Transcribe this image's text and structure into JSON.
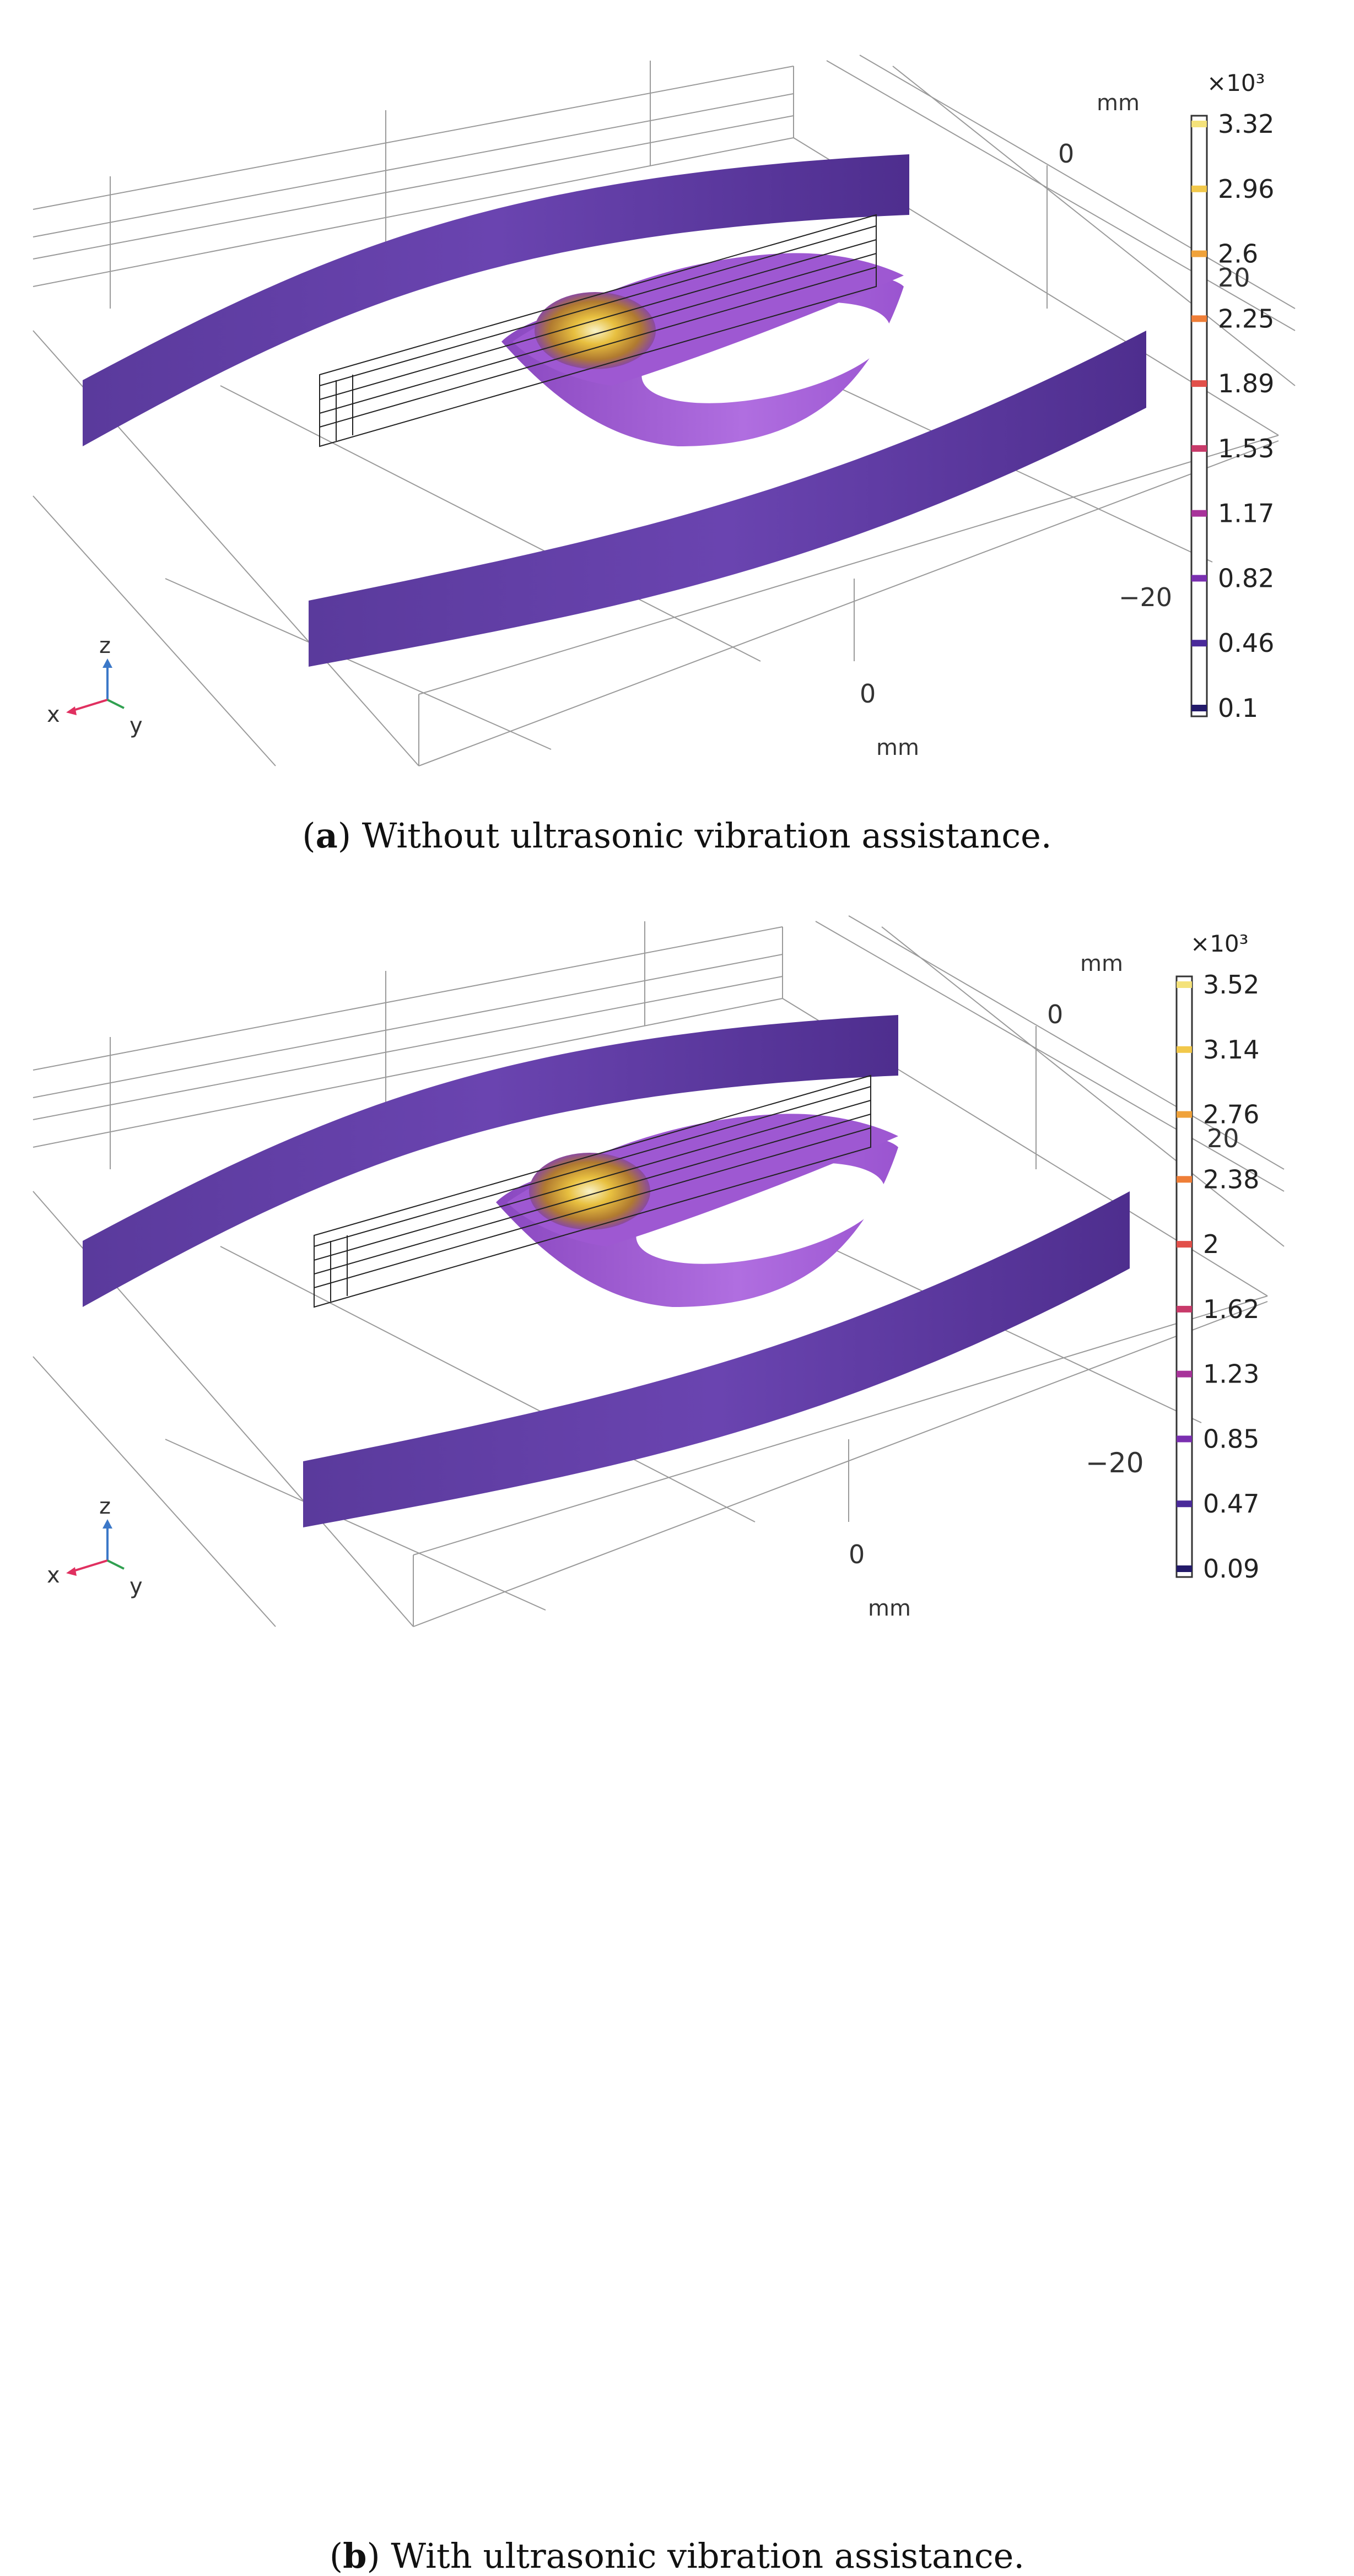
{
  "figure": {
    "panels": [
      {
        "id": "a",
        "caption_letter": "a",
        "caption_text": "Without ultrasonic vibration assistance.",
        "axis_labels": {
          "mm_top": "mm",
          "tick_0_top": "0",
          "tick_20": "20",
          "tick_minus20": "−20",
          "tick_0_bottom": "0",
          "mm_bottom": "mm"
        },
        "triad": {
          "z": "z",
          "x": "x",
          "y": "y"
        },
        "colorbar": {
          "multiplier": "×10³",
          "ticks": [
            "3.32",
            "2.96",
            "2.6",
            "2.25",
            "1.89",
            "1.53",
            "1.17",
            "0.82",
            "0.46",
            "0.1"
          ],
          "tick_colors": [
            "#f4e27a",
            "#f2c84a",
            "#f0a23a",
            "#ef7e37",
            "#e2504a",
            "#c83a6a",
            "#a8339a",
            "#7a2fb0",
            "#4a2a9a",
            "#231a6a"
          ]
        }
      },
      {
        "id": "b",
        "caption_letter": "b",
        "caption_text": "With ultrasonic vibration assistance.",
        "axis_labels": {
          "mm_top": "mm",
          "tick_0_top": "0",
          "tick_20": "20",
          "tick_minus20": "−20",
          "tick_0_bottom": "0",
          "mm_bottom": "mm"
        },
        "triad": {
          "z": "z",
          "x": "x",
          "y": "y"
        },
        "colorbar": {
          "multiplier": "×10³",
          "ticks": [
            "3.52",
            "3.14",
            "2.76",
            "2.38",
            "2",
            "1.62",
            "1.23",
            "0.85",
            "0.47",
            "0.09"
          ],
          "tick_colors": [
            "#f4e27a",
            "#f2c84a",
            "#f0a23a",
            "#ef7e37",
            "#e2504a",
            "#c83a6a",
            "#a8339a",
            "#7a2fb0",
            "#4a2a9a",
            "#231a6a"
          ]
        }
      }
    ],
    "colors": {
      "band": "#5e3aa0",
      "band_dark": "#4a2a8c",
      "pool_light": "#b46ee0",
      "pool_mid": "#9a4fd0",
      "hot": "#e8c040",
      "line": "#333333"
    }
  }
}
